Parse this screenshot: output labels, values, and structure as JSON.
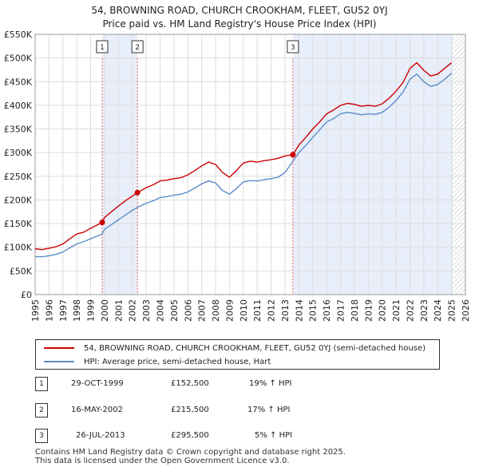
{
  "header": {
    "title_line1": "54, BROWNING ROAD, CHURCH CROOKHAM, FLEET, GU52 0YJ",
    "title_line2": "Price paid vs. HM Land Registry's House Price Index (HPI)"
  },
  "legend": {
    "property_label": "54, BROWNING ROAD, CHURCH CROOKHAM, FLEET, GU52 0YJ (semi-detached house)",
    "hpi_label": "HPI: Average price, semi-detached house, Hart"
  },
  "sales": [
    {
      "num": "1",
      "date": "29-OCT-1999",
      "price": "£152,500",
      "hpi": "19% ↑ HPI"
    },
    {
      "num": "2",
      "date": "16-MAY-2002",
      "price": "£215,500",
      "hpi": "17% ↑ HPI"
    },
    {
      "num": "3",
      "date": "26-JUL-2013",
      "price": "£295,500",
      "hpi": "5% ↑ HPI"
    }
  ],
  "footer": {
    "line1": "Contains HM Land Registry data © Crown copyright and database right 2025.",
    "line2": "This data is licensed under the Open Government Licence v3.0."
  },
  "colors": {
    "property": "#cc0000",
    "hpi": "#5b8cc8",
    "shade": "#e8eefa",
    "grid": "#dddddd",
    "marker_line": "#e06060"
  },
  "chart_data": {
    "type": "line",
    "title": "Price paid vs. HM Land Registry's House Price Index (HPI)",
    "xlabel": "",
    "ylabel": "",
    "xlim": [
      1995,
      2026
    ],
    "ylim": [
      0,
      550000
    ],
    "x_ticks": [
      1995,
      1996,
      1997,
      1998,
      1999,
      2000,
      2001,
      2002,
      2003,
      2004,
      2005,
      2006,
      2007,
      2008,
      2009,
      2010,
      2011,
      2012,
      2013,
      2014,
      2015,
      2016,
      2017,
      2018,
      2019,
      2020,
      2021,
      2022,
      2023,
      2024,
      2025,
      2026
    ],
    "y_ticks": [
      {
        "value": 0,
        "label": "£0"
      },
      {
        "value": 50000,
        "label": "£50K"
      },
      {
        "value": 100000,
        "label": "£100K"
      },
      {
        "value": 150000,
        "label": "£150K"
      },
      {
        "value": 200000,
        "label": "£200K"
      },
      {
        "value": 250000,
        "label": "£250K"
      },
      {
        "value": 300000,
        "label": "£300K"
      },
      {
        "value": 350000,
        "label": "£350K"
      },
      {
        "value": 400000,
        "label": "£400K"
      },
      {
        "value": 450000,
        "label": "£450K"
      },
      {
        "value": 500000,
        "label": "£500K"
      },
      {
        "value": 550000,
        "label": "£550K"
      }
    ],
    "shaded_ranges": [
      [
        1999.83,
        2002.37
      ],
      [
        2013.57,
        2025.1
      ]
    ],
    "hatched_from": 2025.1,
    "sales": [
      {
        "num": "1",
        "x": 1999.83,
        "y": 152500
      },
      {
        "num": "2",
        "x": 2002.37,
        "y": 215500
      },
      {
        "num": "3",
        "x": 2013.57,
        "y": 295500
      }
    ],
    "series": [
      {
        "name": "54, BROWNING ROAD, CHURCH CROOKHAM, FLEET, GU52 0YJ (semi-detached house)",
        "color": "#cc0000",
        "x": [
          1995,
          1995.5,
          1996,
          1996.5,
          1997,
          1997.5,
          1998,
          1998.5,
          1999,
          1999.83,
          2000,
          2000.5,
          2001,
          2001.5,
          2002,
          2002.37,
          2003,
          2003.5,
          2004,
          2004.5,
          2005,
          2005.5,
          2006,
          2006.5,
          2007,
          2007.5,
          2008,
          2008.5,
          2009,
          2009.5,
          2010,
          2010.5,
          2011,
          2011.5,
          2012,
          2012.5,
          2013,
          2013.57,
          2014,
          2014.5,
          2015,
          2015.5,
          2016,
          2016.5,
          2017,
          2017.5,
          2018,
          2018.5,
          2019,
          2019.5,
          2020,
          2020.5,
          2021,
          2021.5,
          2022,
          2022.5,
          2023,
          2023.5,
          2024,
          2024.5,
          2025
        ],
        "values": [
          97000,
          95000,
          98000,
          101000,
          107000,
          118000,
          128000,
          132000,
          140000,
          152500,
          163000,
          175000,
          187000,
          198000,
          208000,
          215500,
          226000,
          232000,
          240000,
          242000,
          245000,
          247000,
          253000,
          262000,
          272000,
          280000,
          275000,
          258000,
          248000,
          262000,
          278000,
          282000,
          280000,
          283000,
          285000,
          288000,
          293000,
          295500,
          316000,
          332000,
          350000,
          365000,
          382000,
          390000,
          400000,
          404000,
          402000,
          398000,
          400000,
          398000,
          403000,
          415000,
          430000,
          448000,
          478000,
          490000,
          474000,
          462000,
          466000,
          478000,
          490000
        ]
      },
      {
        "name": "HPI: Average price, semi-detached house, Hart",
        "color": "#5b8cc8",
        "x": [
          1995,
          1995.5,
          1996,
          1996.5,
          1997,
          1997.5,
          1998,
          1998.5,
          1999,
          1999.83,
          2000,
          2000.5,
          2001,
          2001.5,
          2002,
          2002.37,
          2003,
          2003.5,
          2004,
          2004.5,
          2005,
          2005.5,
          2006,
          2006.5,
          2007,
          2007.5,
          2008,
          2008.5,
          2009,
          2009.5,
          2010,
          2010.5,
          2011,
          2011.5,
          2012,
          2012.5,
          2013,
          2013.57,
          2014,
          2014.5,
          2015,
          2015.5,
          2016,
          2016.5,
          2017,
          2017.5,
          2018,
          2018.5,
          2019,
          2019.5,
          2020,
          2020.5,
          2021,
          2021.5,
          2022,
          2022.5,
          2023,
          2023.5,
          2024,
          2024.5,
          2025
        ],
        "values": [
          80000,
          80000,
          82000,
          85000,
          90000,
          99000,
          107000,
          112000,
          118000,
          128000,
          138000,
          148000,
          158000,
          168000,
          178000,
          184000,
          193000,
          198000,
          205000,
          207000,
          210000,
          212000,
          217000,
          225000,
          234000,
          240000,
          236000,
          220000,
          212000,
          224000,
          238000,
          241000,
          240000,
          243000,
          245000,
          248000,
          258000,
          282000,
          300000,
          315000,
          332000,
          348000,
          365000,
          372000,
          382000,
          385000,
          383000,
          380000,
          382000,
          381000,
          385000,
          396000,
          410000,
          428000,
          455000,
          466000,
          450000,
          440000,
          444000,
          455000,
          468000
        ]
      }
    ]
  }
}
